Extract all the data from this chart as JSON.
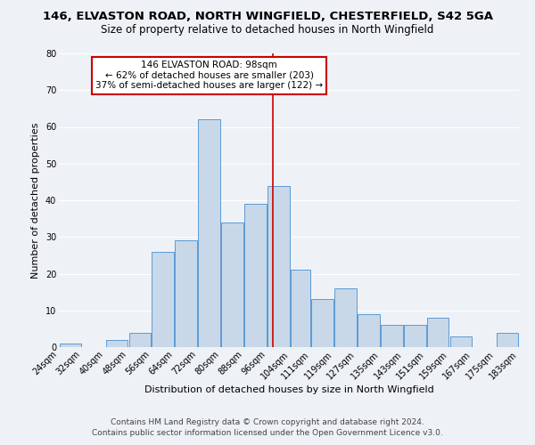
{
  "title": "146, ELVASTON ROAD, NORTH WINGFIELD, CHESTERFIELD, S42 5GA",
  "subtitle": "Size of property relative to detached houses in North Wingfield",
  "xlabel": "Distribution of detached houses by size in North Wingfield",
  "ylabel": "Number of detached properties",
  "bar_values": [
    1,
    0,
    2,
    4,
    26,
    29,
    62,
    34,
    39,
    44,
    21,
    13,
    16,
    9,
    6,
    6,
    8,
    3,
    0,
    4
  ],
  "bin_edges": [
    24,
    32,
    40,
    48,
    56,
    64,
    72,
    80,
    88,
    96,
    104,
    111,
    119,
    127,
    135,
    143,
    151,
    159,
    167,
    175,
    183
  ],
  "tick_labels": [
    "24sqm",
    "32sqm",
    "40sqm",
    "48sqm",
    "56sqm",
    "64sqm",
    "72sqm",
    "80sqm",
    "88sqm",
    "96sqm",
    "104sqm",
    "111sqm",
    "119sqm",
    "127sqm",
    "135sqm",
    "143sqm",
    "151sqm",
    "159sqm",
    "167sqm",
    "175sqm",
    "183sqm"
  ],
  "bar_color": "#c8d8e8",
  "bar_edgecolor": "#5b9bd5",
  "vline_x": 98,
  "vline_color": "#cc0000",
  "annotation_title": "146 ELVASTON ROAD: 98sqm",
  "annotation_line1": "← 62% of detached houses are smaller (203)",
  "annotation_line2": "37% of semi-detached houses are larger (122) →",
  "annotation_box_edgecolor": "#cc0000",
  "ylim": [
    0,
    80
  ],
  "yticks": [
    0,
    10,
    20,
    30,
    40,
    50,
    60,
    70,
    80
  ],
  "footnote1": "Contains HM Land Registry data © Crown copyright and database right 2024.",
  "footnote2": "Contains public sector information licensed under the Open Government Licence v3.0.",
  "background_color": "#eef2f7",
  "grid_color": "#ffffff",
  "title_fontsize": 9.5,
  "subtitle_fontsize": 8.5,
  "axis_label_fontsize": 8,
  "tick_fontsize": 7,
  "annotation_fontsize": 7.5,
  "footnote_fontsize": 6.5
}
